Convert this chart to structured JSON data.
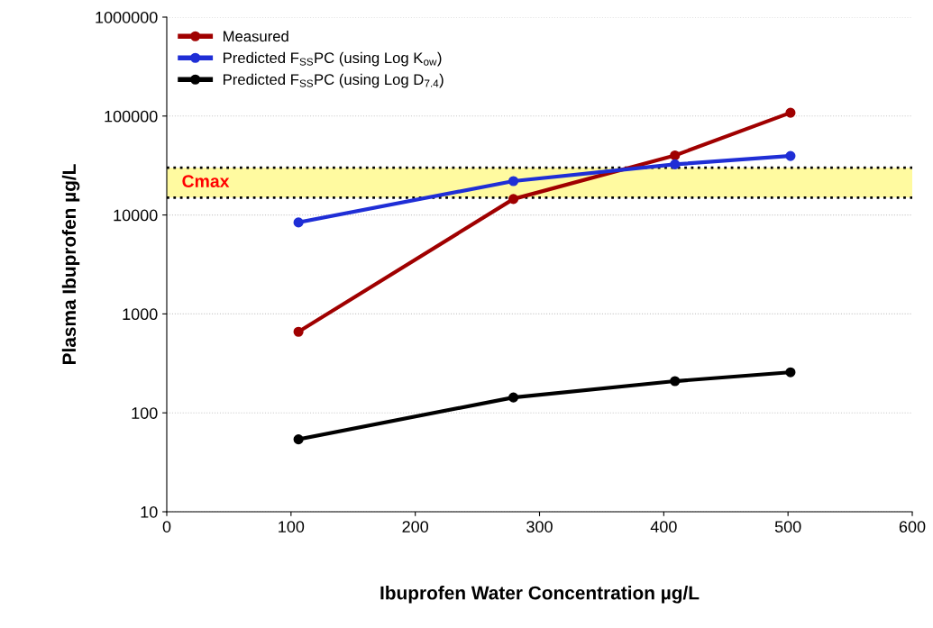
{
  "chart_data": {
    "type": "line",
    "xlabel": "Ibuprofen Water Concentration µg/L",
    "ylabel": "Plasma Ibuprofen µg/L",
    "x": [
      106,
      279,
      409,
      502
    ],
    "series": [
      {
        "name": "Measured",
        "color": "#a00000",
        "values": [
          660,
          14500,
          40000,
          108000
        ]
      },
      {
        "name": "Predicted F$_{SS}$PC (using Log K$_{ow}$)",
        "color": "#1f2ed6",
        "values": [
          8400,
          22000,
          32500,
          39500
        ]
      },
      {
        "name": "Predicted F$_{SS}$PC (using Log D$_{7.4}$)",
        "color": "#000000",
        "values": [
          54,
          143,
          209,
          257
        ]
      }
    ],
    "log": "y",
    "xlim": [
      0,
      600
    ],
    "xticks": [
      0,
      100,
      200,
      300,
      400,
      500,
      600
    ],
    "ylim": [
      10,
      1000000
    ],
    "yticks": [
      10,
      100,
      1000,
      10000,
      100000,
      1000000
    ],
    "bands": [
      {
        "axis": "y",
        "from": 15000,
        "to": 30000,
        "label": "Cmax",
        "color": "#fffaa0"
      }
    ],
    "ref_lines": [
      {
        "axis": "y",
        "value": 15000,
        "color": "#000000",
        "line_style": "dotted"
      },
      {
        "axis": "y",
        "value": 30000,
        "color": "#000000",
        "line_style": "dotted"
      }
    ],
    "grid": "y",
    "legend": "top left",
    "marker": "circle",
    "line_style": "solid"
  }
}
